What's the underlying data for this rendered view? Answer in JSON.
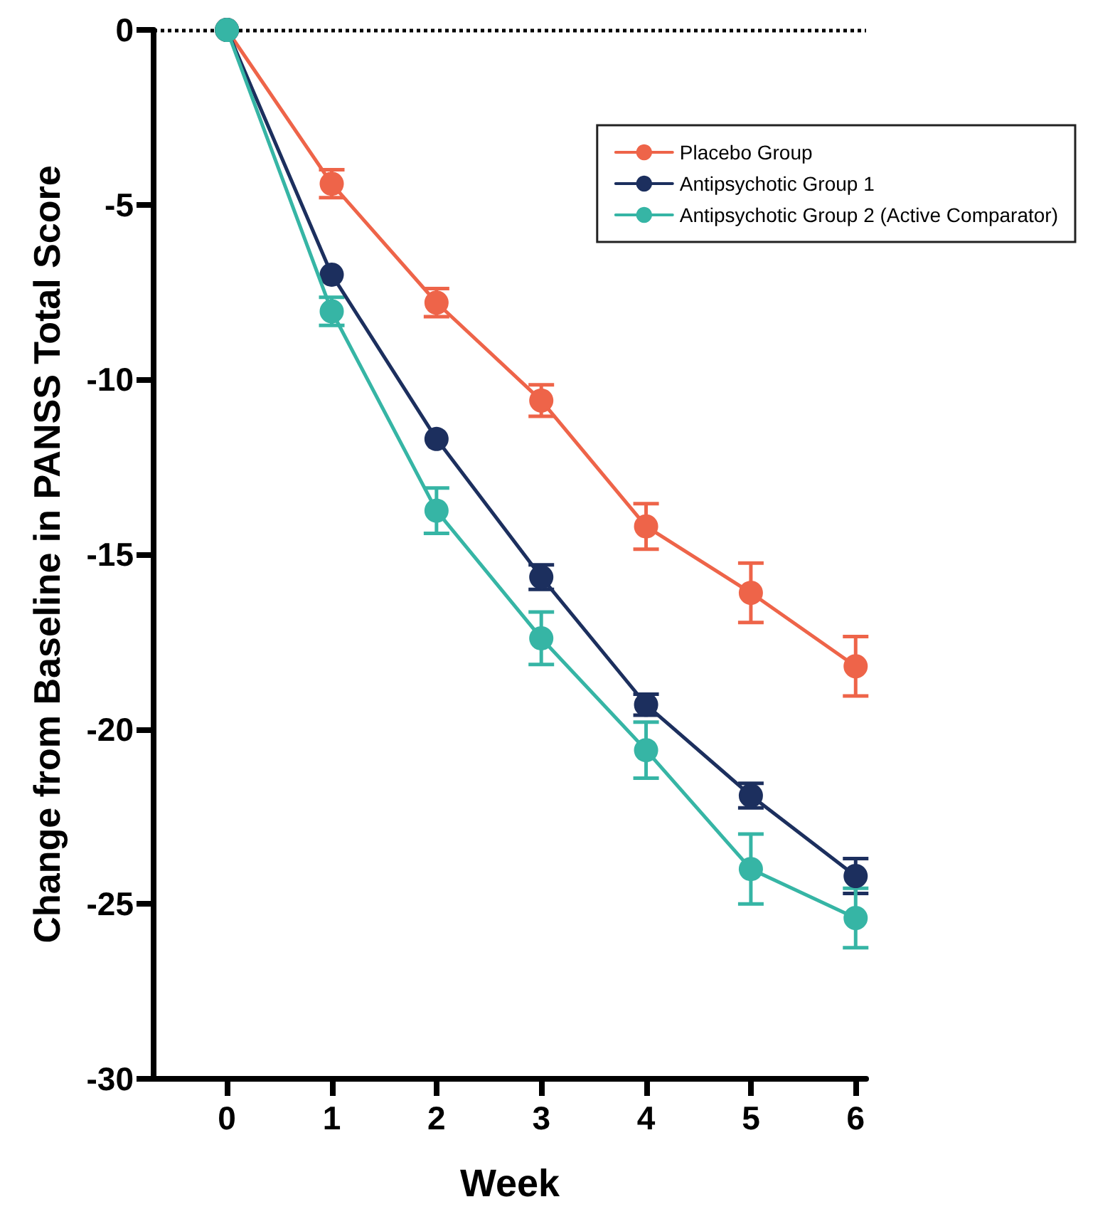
{
  "chart_data": {
    "type": "line",
    "xlabel": "Week",
    "ylabel": "Change from Baseline in PANSS Total Score",
    "x": [
      0,
      1,
      2,
      3,
      4,
      5,
      6
    ],
    "xlim": [
      -0.7,
      6.1
    ],
    "xticks": [
      0,
      1,
      2,
      3,
      4,
      5,
      6
    ],
    "ylim": [
      -30,
      0
    ],
    "yticks": [
      -30,
      -25,
      -20,
      -15,
      -10,
      -5,
      0
    ],
    "series": [
      {
        "name": "Placebo Group",
        "color": "#ee6449",
        "values": [
          0,
          -4.4,
          -7.8,
          -10.6,
          -14.2,
          -16.1,
          -18.2
        ],
        "errors": [
          null,
          0.4,
          0.4,
          0.45,
          0.65,
          0.85,
          0.85
        ]
      },
      {
        "name": "Antipsychotic Group 1",
        "color": "#1c2f5e",
        "values": [
          0,
          -7.0,
          -11.7,
          -15.65,
          -19.3,
          -21.9,
          -24.2
        ],
        "errors": [
          null,
          null,
          null,
          0.35,
          0.3,
          0.35,
          0.5
        ]
      },
      {
        "name": "Antipsychotic Group 2 (Active Comparator)",
        "color": "#36b5a5",
        "values": [
          0,
          -8.05,
          -13.75,
          -17.4,
          -20.6,
          -24.0,
          -25.4
        ],
        "errors": [
          null,
          0.4,
          0.65,
          0.75,
          0.8,
          1.0,
          0.85
        ]
      }
    ],
    "ref_lines": [
      {
        "axis": "y",
        "value": 0,
        "line_style": "dotted",
        "color": "#000000"
      }
    ],
    "marker": "circle",
    "line_style": "solid",
    "grid": false,
    "legend": "top right"
  }
}
